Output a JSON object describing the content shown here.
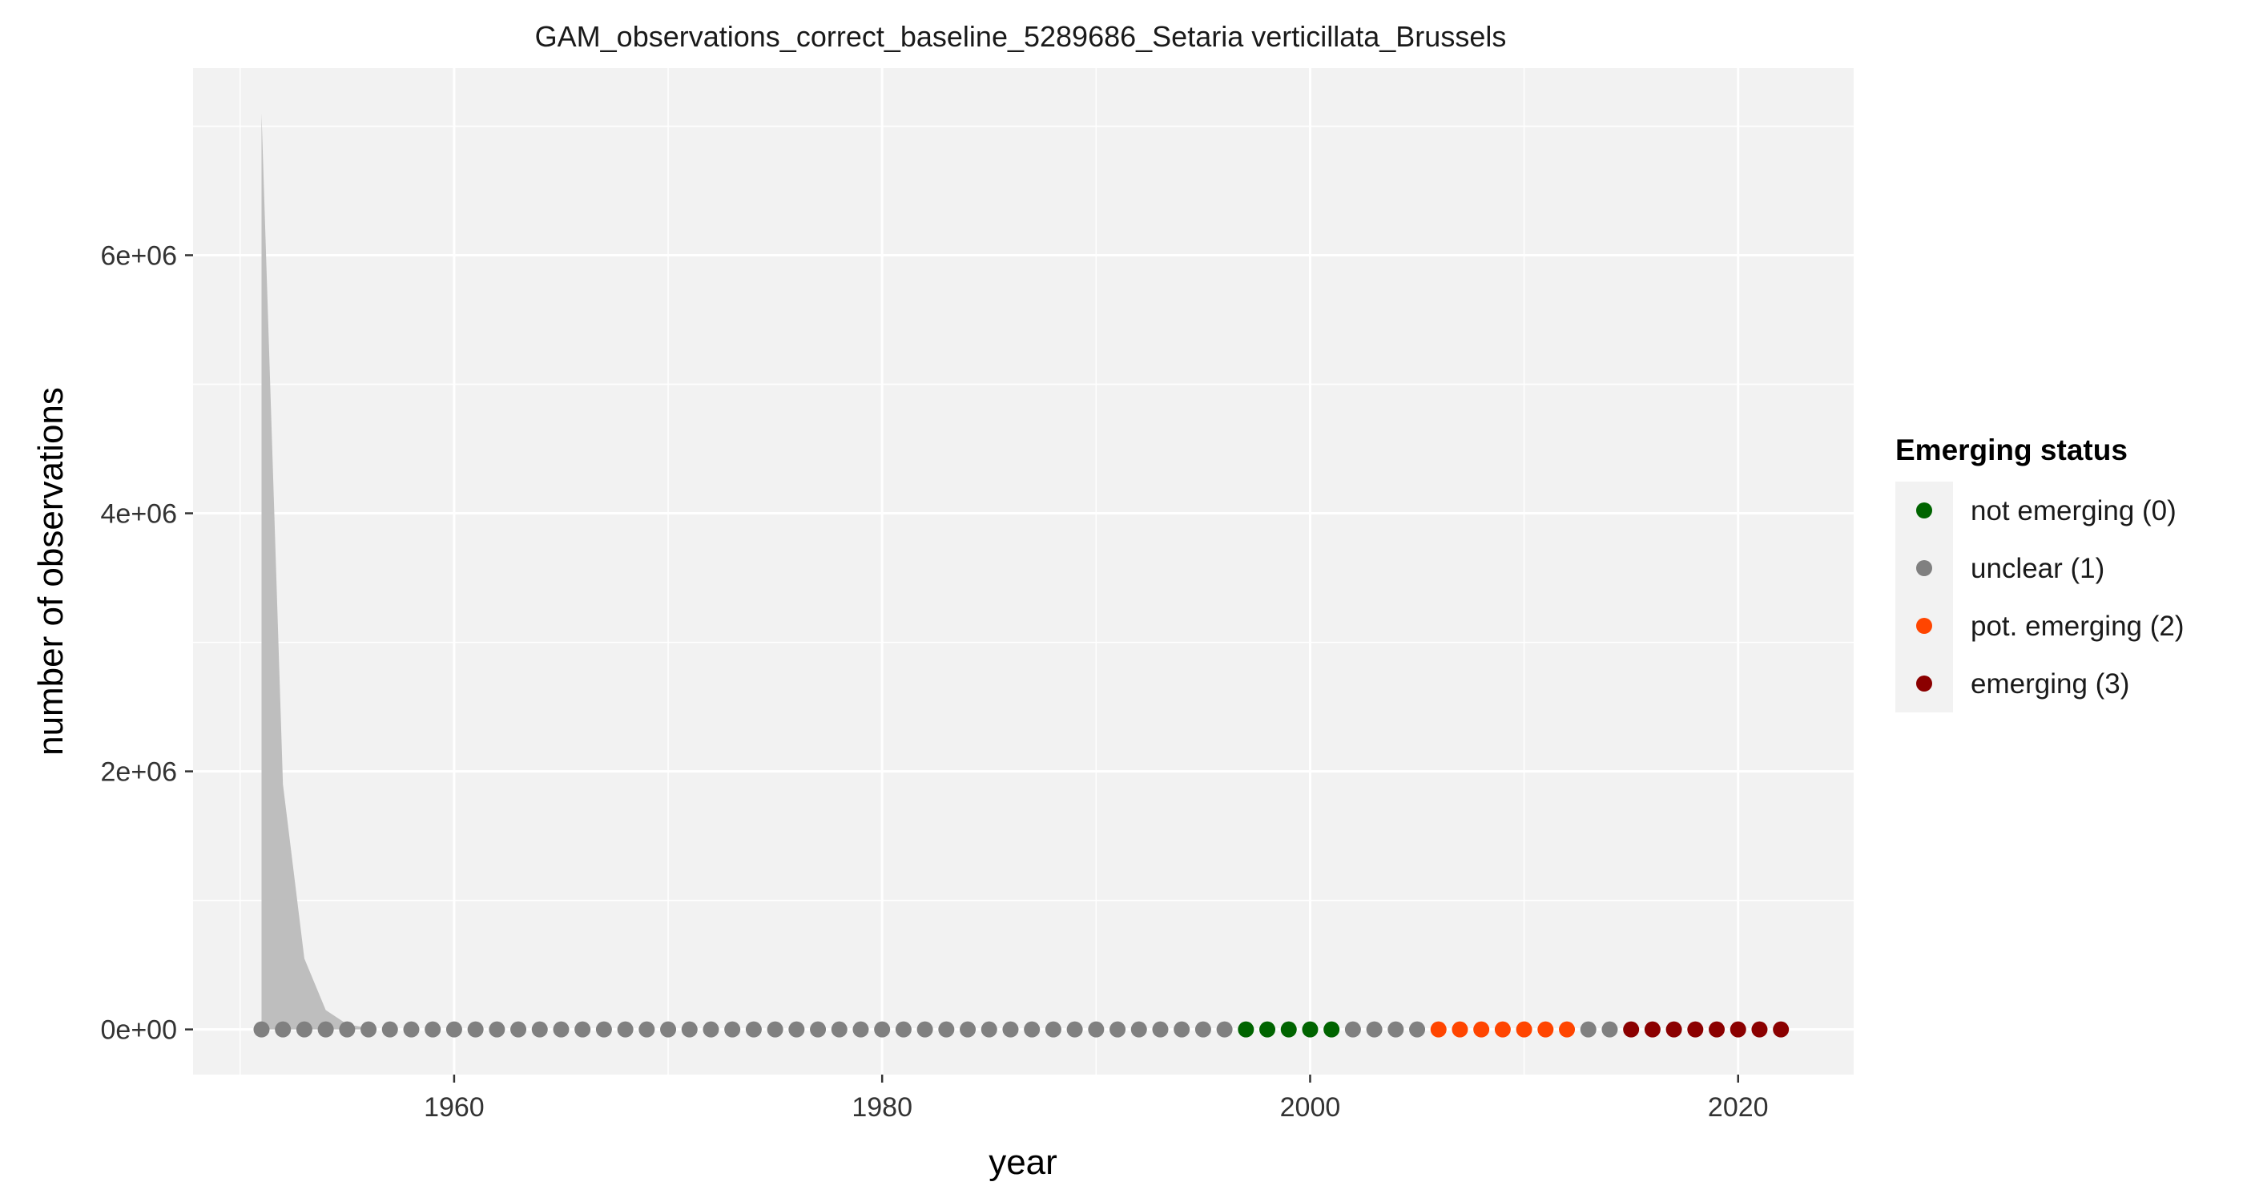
{
  "chart_data": {
    "type": "scatter",
    "title": "GAM_observations_correct_baseline_5289686_Setaria verticillata_Brussels",
    "xlabel": "year",
    "ylabel": "number of observations",
    "xlim": [
      1947.8,
      2025.4
    ],
    "ylim": [
      -350000,
      7450000
    ],
    "x_ticks": [
      1960,
      1980,
      2000,
      2020
    ],
    "x_tick_labels": [
      "1960",
      "1980",
      "2000",
      "2020"
    ],
    "y_ticks": [
      0,
      2000000,
      4000000,
      6000000
    ],
    "y_tick_labels": [
      "0e+00",
      "2e+06",
      "4e+06",
      "6e+06"
    ],
    "grid": true,
    "legend": {
      "title": "Emerging status",
      "position": "right",
      "items": [
        {
          "label": "not emerging (0)",
          "color": "#006400"
        },
        {
          "label": "unclear (1)",
          "color": "#808080"
        },
        {
          "label": "pot. emerging (2)",
          "color": "#FF4500"
        },
        {
          "label": "emerging (3)",
          "color": "#8B0000"
        }
      ]
    },
    "confidence_band": {
      "color": "#BEBEBE",
      "x": [
        1951,
        1952,
        1953,
        1954,
        1955,
        1956
      ],
      "upper": [
        7100000,
        1900000,
        550000,
        150000,
        40000,
        10000
      ]
    },
    "points": {
      "x_start": 1951,
      "y": 0,
      "status": [
        1,
        1,
        1,
        1,
        1,
        1,
        1,
        1,
        1,
        1,
        1,
        1,
        1,
        1,
        1,
        1,
        1,
        1,
        1,
        1,
        1,
        1,
        1,
        1,
        1,
        1,
        1,
        1,
        1,
        1,
        1,
        1,
        1,
        1,
        1,
        1,
        1,
        1,
        1,
        1,
        1,
        1,
        1,
        1,
        1,
        1,
        0,
        0,
        0,
        0,
        0,
        1,
        1,
        1,
        1,
        2,
        2,
        2,
        2,
        2,
        2,
        2,
        1,
        1,
        3,
        3,
        3,
        3,
        3,
        3,
        3,
        3
      ]
    }
  }
}
